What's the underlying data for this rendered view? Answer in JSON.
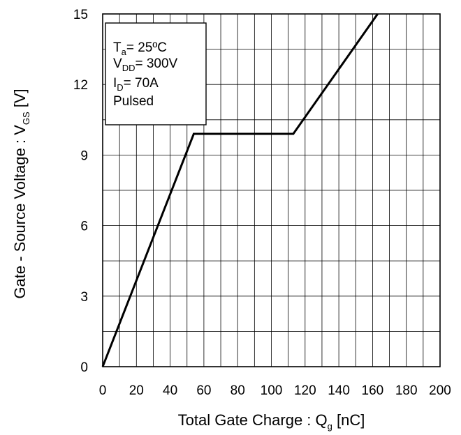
{
  "chart_data": {
    "type": "line",
    "xlabel": {
      "main": "Total Gate Charge : Q",
      "sub": "g",
      "unit": " [nC]"
    },
    "ylabel": {
      "main": "Gate - Source Voltage : V",
      "sub": "GS",
      "unit": " [V]"
    },
    "xlim": [
      0,
      200
    ],
    "ylim": [
      0,
      15
    ],
    "x_ticks": [
      0,
      20,
      40,
      60,
      80,
      100,
      120,
      140,
      160,
      180,
      200
    ],
    "y_ticks": [
      0,
      3,
      6,
      9,
      12,
      15
    ],
    "x_minor_step": 10,
    "y_minor_step": 1.5,
    "grid": true,
    "legend_position": "top-left",
    "conditions": [
      {
        "main": "T",
        "sub": "a",
        "rest": "= 25ºC"
      },
      {
        "main": "V",
        "sub": "DD",
        "rest": "= 300V"
      },
      {
        "main": "I",
        "sub": "D",
        "rest": "= 70A"
      },
      {
        "main": "Pulsed",
        "sub": "",
        "rest": ""
      }
    ],
    "series": [
      {
        "color": "#000000",
        "x": [
          0,
          54,
          113,
          163
        ],
        "y": [
          0,
          9.9,
          9.9,
          15
        ]
      }
    ]
  }
}
